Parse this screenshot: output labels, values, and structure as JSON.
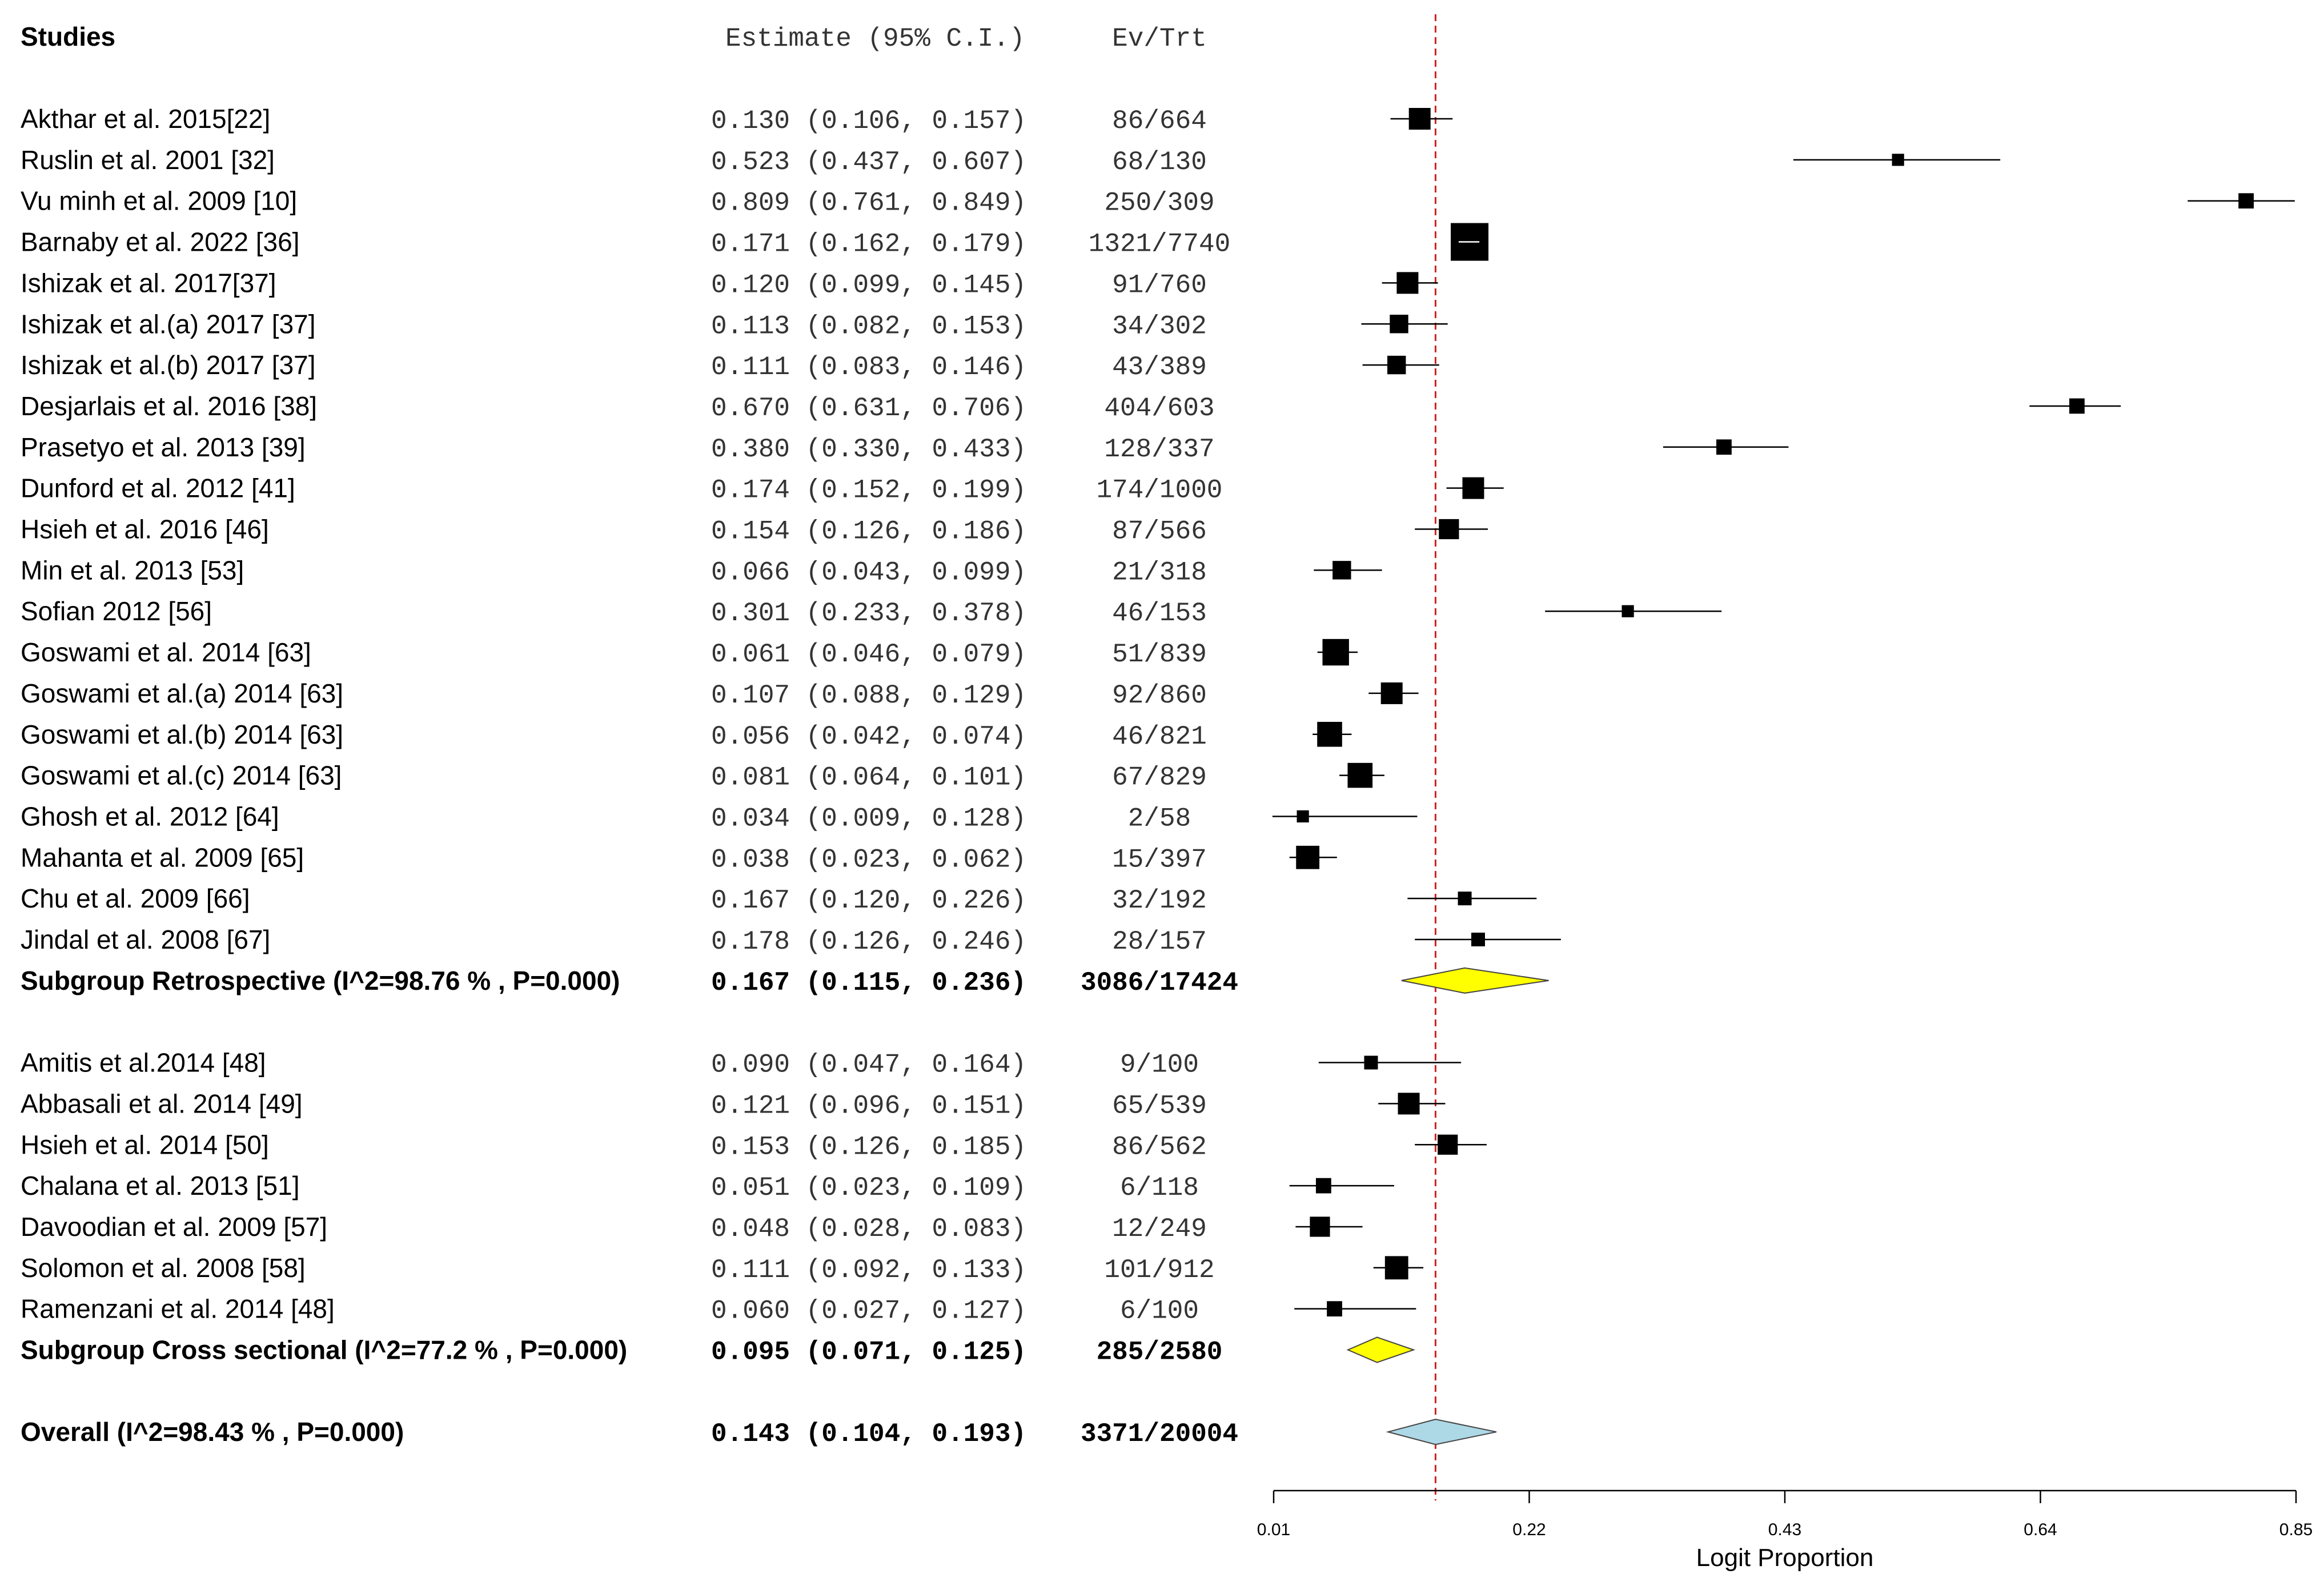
{
  "headers": {
    "studies": "Studies",
    "estimate": "Estimate (95% C.I.)",
    "evtrt": "Ev/Trt"
  },
  "chart_data": {
    "type": "forest",
    "xlabel": "Logit Proportion",
    "xticks": [
      "0.01",
      "0.22",
      "0.43",
      "0.64",
      "0.85"
    ],
    "xlim": [
      0.01,
      0.85
    ],
    "reference_line": 0.143,
    "colors": {
      "reference_line": "#cc2222",
      "subgroup_diamond": "#ffff00",
      "overall_diamond": "#add8e6"
    },
    "rows": [
      {
        "kind": "study",
        "label": "Akthar et al. 2015[22]",
        "est_text": "0.130 (0.106, 0.157)",
        "ev": "86/664",
        "est": 0.13,
        "lo": 0.106,
        "hi": 0.157,
        "weight": 5
      },
      {
        "kind": "study",
        "label": "Ruslin et al. 2001 [32]",
        "est_text": "0.523 (0.437, 0.607)",
        "ev": "68/130",
        "est": 0.523,
        "lo": 0.437,
        "hi": 0.607,
        "weight": 2
      },
      {
        "kind": "study",
        "label": "Vu minh et al. 2009 [10]",
        "est_text": "0.809 (0.761, 0.849)",
        "ev": "250/309",
        "est": 0.809,
        "lo": 0.761,
        "hi": 0.849,
        "weight": 3
      },
      {
        "kind": "study",
        "label": "Barnaby et al. 2022 [36]",
        "est_text": "0.171 (0.162, 0.179)",
        "ev": "1321/7740",
        "est": 0.171,
        "lo": 0.162,
        "hi": 0.179,
        "weight": 10
      },
      {
        "kind": "study",
        "label": "Ishizak et al. 2017[37]",
        "est_text": "0.120 (0.099, 0.145)",
        "ev": "91/760",
        "est": 0.12,
        "lo": 0.099,
        "hi": 0.145,
        "weight": 5
      },
      {
        "kind": "study",
        "label": "Ishizak et al.(a) 2017 [37]",
        "est_text": "0.113 (0.082, 0.153)",
        "ev": "34/302",
        "est": 0.113,
        "lo": 0.082,
        "hi": 0.153,
        "weight": 4
      },
      {
        "kind": "study",
        "label": "Ishizak et al.(b) 2017 [37]",
        "est_text": "0.111 (0.083, 0.146)",
        "ev": "43/389",
        "est": 0.111,
        "lo": 0.083,
        "hi": 0.146,
        "weight": 4
      },
      {
        "kind": "study",
        "label": "Desjarlais et al. 2016 [38]",
        "est_text": "0.670 (0.631, 0.706)",
        "ev": "404/603",
        "est": 0.67,
        "lo": 0.631,
        "hi": 0.706,
        "weight": 3
      },
      {
        "kind": "study",
        "label": "Prasetyo et al. 2013 [39]",
        "est_text": "0.380 (0.330, 0.433)",
        "ev": "128/337",
        "est": 0.38,
        "lo": 0.33,
        "hi": 0.433,
        "weight": 3
      },
      {
        "kind": "study",
        "label": "Dunford et al. 2012 [41]",
        "est_text": "0.174 (0.152, 0.199)",
        "ev": "174/1000",
        "est": 0.174,
        "lo": 0.152,
        "hi": 0.199,
        "weight": 5
      },
      {
        "kind": "study",
        "label": " Hsieh et al. 2016 [46]",
        "est_text": "0.154 (0.126, 0.186)",
        "ev": "87/566",
        "est": 0.154,
        "lo": 0.126,
        "hi": 0.186,
        "weight": 4.5
      },
      {
        "kind": "study",
        "label": "Min et al. 2013  [53]",
        "est_text": "0.066 (0.043, 0.099)",
        "ev": "21/318",
        "est": 0.066,
        "lo": 0.043,
        "hi": 0.099,
        "weight": 4
      },
      {
        "kind": "study",
        "label": "Sofian 2012 [56]",
        "est_text": "0.301 (0.233, 0.378)",
        "ev": "46/153",
        "est": 0.301,
        "lo": 0.233,
        "hi": 0.378,
        "weight": 2
      },
      {
        "kind": "study",
        "label": "Goswami et al. 2014 [63]",
        "est_text": "0.061 (0.046, 0.079)",
        "ev": "51/839",
        "est": 0.061,
        "lo": 0.046,
        "hi": 0.079,
        "weight": 6.5
      },
      {
        "kind": "study",
        "label": "Goswami et al.(a) 2014 [63]",
        "est_text": "0.107 (0.088, 0.129)",
        "ev": "92/860",
        "est": 0.107,
        "lo": 0.088,
        "hi": 0.129,
        "weight": 5
      },
      {
        "kind": "study",
        "label": "Goswami et al.(b) 2014 [63]",
        "est_text": "0.056 (0.042, 0.074)",
        "ev": "46/821",
        "est": 0.056,
        "lo": 0.042,
        "hi": 0.074,
        "weight": 6
      },
      {
        "kind": "study",
        "label": "Goswami et al.(c) 2014 [63]",
        "est_text": "0.081 (0.064, 0.101)",
        "ev": "67/829",
        "est": 0.081,
        "lo": 0.064,
        "hi": 0.101,
        "weight": 6
      },
      {
        "kind": "study",
        "label": "Ghosh et al. 2012 [64]",
        "est_text": "0.034 (0.009, 0.128)",
        "ev": "2/58",
        "est": 0.034,
        "lo": 0.009,
        "hi": 0.128,
        "weight": 2
      },
      {
        "kind": "study",
        "label": "Mahanta et al. 2009 [65]",
        "est_text": "0.038 (0.023, 0.062)",
        "ev": "15/397",
        "est": 0.038,
        "lo": 0.023,
        "hi": 0.062,
        "weight": 5.5
      },
      {
        "kind": "study",
        "label": "Chu et al. 2009 [66]",
        "est_text": "0.167 (0.120, 0.226)",
        "ev": "32/192",
        "est": 0.167,
        "lo": 0.12,
        "hi": 0.226,
        "weight": 2.5
      },
      {
        "kind": "study",
        "label": "Jindal et al. 2008 [67]",
        "est_text": "0.178 (0.126, 0.246)",
        "ev": "28/157",
        "est": 0.178,
        "lo": 0.126,
        "hi": 0.246,
        "weight": 2.5
      },
      {
        "kind": "subgroup",
        "label": "Subgroup Retrospective  (I^2=98.76 % , P=0.000)",
        "est_text": "0.167 (0.115, 0.236)",
        "ev": "3086/17424",
        "est": 0.167,
        "lo": 0.115,
        "hi": 0.236,
        "color": "#ffff00"
      },
      {
        "kind": "blank"
      },
      {
        "kind": "study",
        "label": "Amitis et al.2014  [48]",
        "est_text": "0.090 (0.047, 0.164)",
        "ev": "9/100",
        "est": 0.09,
        "lo": 0.047,
        "hi": 0.164,
        "weight": 2.5
      },
      {
        "kind": "study",
        "label": "Abbasali et al. 2014 [49]",
        "est_text": "0.121 (0.096, 0.151)",
        "ev": "65/539",
        "est": 0.121,
        "lo": 0.096,
        "hi": 0.151,
        "weight": 5
      },
      {
        "kind": "study",
        "label": "Hsieh et al. 2014 [50]",
        "est_text": "0.153 (0.126, 0.185)",
        "ev": "86/562",
        "est": 0.153,
        "lo": 0.126,
        "hi": 0.185,
        "weight": 4.5
      },
      {
        "kind": "study",
        "label": "Chalana et al. 2013 [51]",
        "est_text": "0.051 (0.023, 0.109)",
        "ev": "6/118",
        "est": 0.051,
        "lo": 0.023,
        "hi": 0.109,
        "weight": 3
      },
      {
        "kind": "study",
        "label": "Davoodian et al. 2009 [57]",
        "est_text": "0.048 (0.028, 0.083)",
        "ev": "12/249",
        "est": 0.048,
        "lo": 0.028,
        "hi": 0.083,
        "weight": 4.5
      },
      {
        "kind": "study",
        "label": "Solomon et al. 2008 [58]",
        "est_text": "0.111 (0.092, 0.133)",
        "ev": "101/912",
        "est": 0.111,
        "lo": 0.092,
        "hi": 0.133,
        "weight": 5.5
      },
      {
        "kind": "study",
        "label": "Ramenzani et al. 2014 [48]",
        "est_text": "0.060 (0.027, 0.127)",
        "ev": "6/100",
        "est": 0.06,
        "lo": 0.027,
        "hi": 0.127,
        "weight": 3
      },
      {
        "kind": "subgroup",
        "label": "Subgroup Cross sectional  (I^2=77.2 % , P=0.000)",
        "est_text": "0.095 (0.071, 0.125)",
        "ev": "285/2580",
        "est": 0.095,
        "lo": 0.071,
        "hi": 0.125,
        "color": "#ffff00"
      },
      {
        "kind": "blank"
      },
      {
        "kind": "overall",
        "label": "Overall (I^2=98.43 % , P=0.000)",
        "est_text": "0.143 (0.104, 0.193)",
        "ev": "3371/20004",
        "est": 0.143,
        "lo": 0.104,
        "hi": 0.193,
        "color": "#add8e6"
      }
    ]
  }
}
